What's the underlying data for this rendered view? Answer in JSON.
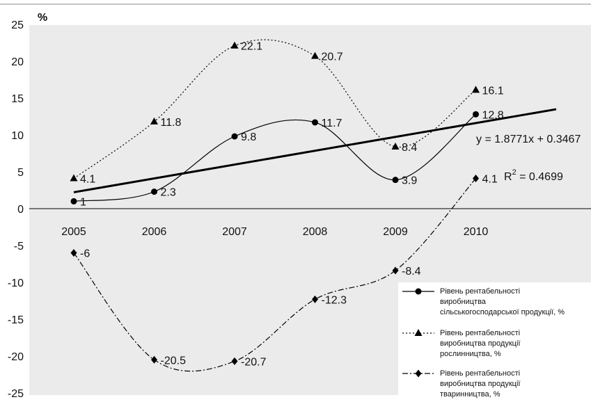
{
  "chart_data": {
    "type": "line",
    "ylabel": "%",
    "ylim": [
      -25,
      25
    ],
    "y_ticks": [
      25,
      20,
      15,
      10,
      5,
      0,
      -5,
      -10,
      -15,
      -20,
      -25
    ],
    "categories": [
      "2005",
      "2006",
      "2007",
      "2008",
      "2009",
      "2010"
    ],
    "series": [
      {
        "name_lines": [
          "Рівень рентабельності",
          "виробництва",
          "сільськогосподарської продукції, %"
        ],
        "values": [
          1,
          2.3,
          9.8,
          11.7,
          3.9,
          12.8
        ],
        "labels": [
          "1",
          "2.3",
          "9.8",
          "11.7",
          "3.9",
          "12.8"
        ],
        "style": "solid",
        "marker": "circle",
        "color": "#000000"
      },
      {
        "name_lines": [
          "Рівень рентабельності",
          "виробництва продукції",
          "рослинництва, %"
        ],
        "values": [
          4.1,
          11.8,
          22.1,
          20.7,
          8.4,
          16.1
        ],
        "labels": [
          "4.1",
          "11.8",
          "22.1",
          "20.7",
          "8.4",
          "16.1"
        ],
        "style": "dotted",
        "marker": "triangle",
        "color": "#000000"
      },
      {
        "name_lines": [
          "Рівень рентабельності",
          "виробництва продукції",
          "тваринництва, %"
        ],
        "values": [
          -6,
          -20.5,
          -20.7,
          -12.3,
          -8.4,
          4.1
        ],
        "labels": [
          "-6",
          "-20.5",
          "-20.7",
          "-12.3",
          "-8.4",
          "4.1"
        ],
        "style": "dashdot",
        "marker": "diamond",
        "color": "#000000"
      }
    ],
    "trendline": {
      "equation": "y = 1.8771x + 0.3467",
      "r2_text": "R",
      "r2_sup": "2",
      "r2_value": " = 0.4699",
      "slope": 1.8771,
      "intercept": 0.3467,
      "x_end": 7.0
    },
    "grid": false,
    "legend_position": "bottom-right"
  }
}
